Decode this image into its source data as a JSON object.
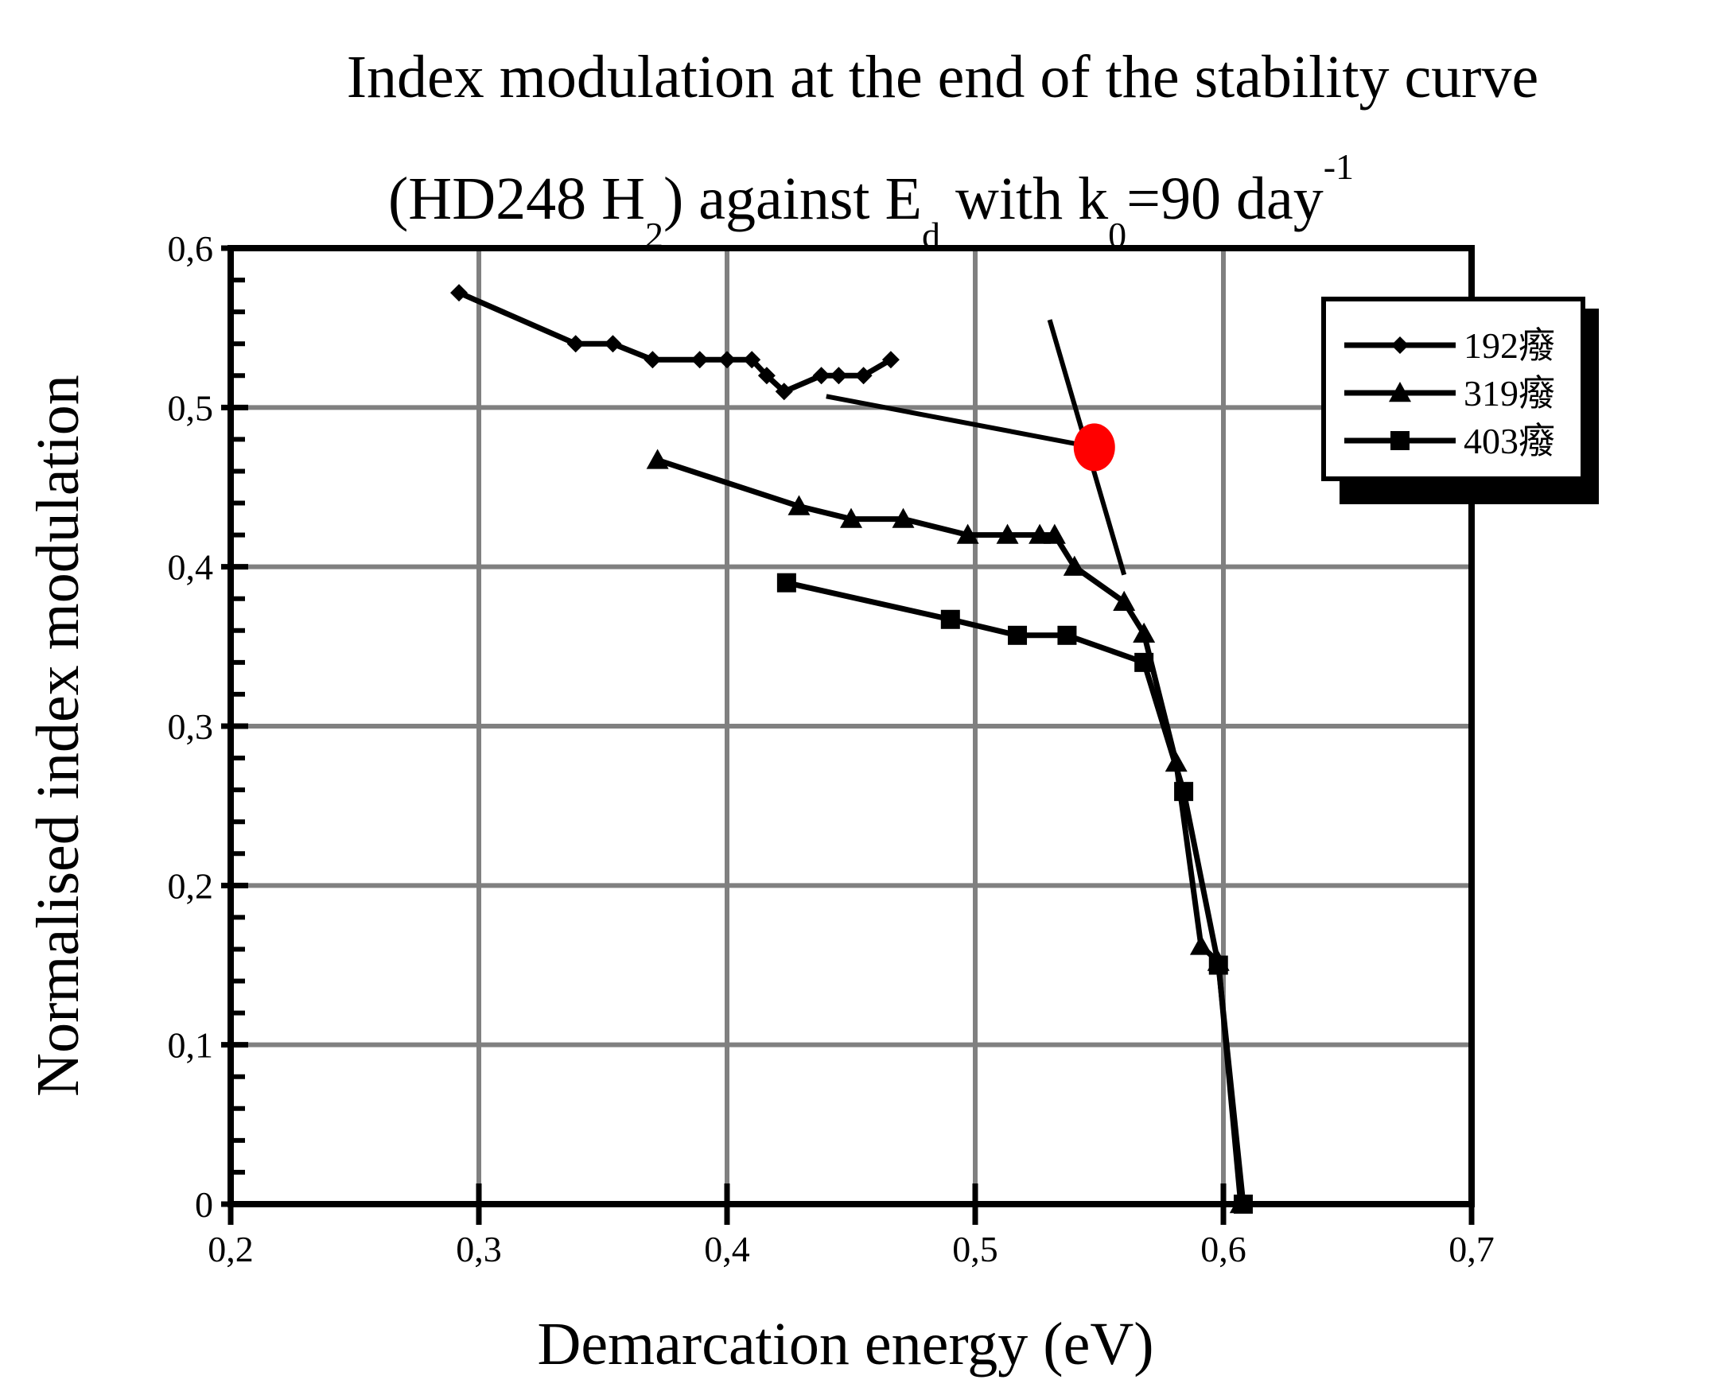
{
  "chart_data": {
    "type": "line",
    "title_line1": "Index modulation at the end of the stability curve",
    "title_line2": {
      "part1": "(HD248 H",
      "sub1": "2",
      "part2": ") against E",
      "sub2": "d",
      "part3": " with k",
      "sub3": "0",
      "part4": "=90 day",
      "sup": "-1"
    },
    "xlabel": "Demarcation energy (eV)",
    "ylabel": "Normalised index modulation",
    "xlim": [
      0.2,
      0.7
    ],
    "ylim": [
      0,
      0.6
    ],
    "x_ticks": [
      0.2,
      0.3,
      0.4,
      0.5,
      0.6,
      0.7
    ],
    "x_tick_labels": [
      "0,2",
      "0,3",
      "0,4",
      "0,5",
      "0,6",
      "0,7"
    ],
    "y_ticks": [
      0,
      0.1,
      0.2,
      0.3,
      0.4,
      0.5,
      0.6
    ],
    "y_tick_labels": [
      "0",
      "0,1",
      "0,2",
      "0,3",
      "0,4",
      "0,5",
      "0,6"
    ],
    "grid": true,
    "legend_position": "top-right",
    "series": [
      {
        "name": "192癈",
        "marker": "diamond",
        "x": [
          0.292,
          0.339,
          0.354,
          0.37,
          0.389,
          0.4,
          0.41,
          0.416,
          0.423,
          0.438,
          0.445,
          0.455,
          0.466
        ],
        "y": [
          0.572,
          0.54,
          0.54,
          0.53,
          0.53,
          0.53,
          0.53,
          0.52,
          0.51,
          0.52,
          0.52,
          0.52,
          0.53
        ]
      },
      {
        "name": "319癈",
        "marker": "triangle",
        "x": [
          0.372,
          0.429,
          0.45,
          0.471,
          0.497,
          0.513,
          0.526,
          0.532,
          0.54,
          0.56,
          0.568,
          0.581,
          0.591,
          0.598,
          0.607
        ],
        "y": [
          0.467,
          0.438,
          0.43,
          0.43,
          0.42,
          0.42,
          0.42,
          0.42,
          0.4,
          0.378,
          0.358,
          0.277,
          0.162,
          0.152,
          0.0
        ]
      },
      {
        "name": "403癈",
        "marker": "square",
        "x": [
          0.424,
          0.49,
          0.517,
          0.537,
          0.568,
          0.584,
          0.598,
          0.608
        ],
        "y": [
          0.39,
          0.367,
          0.357,
          0.357,
          0.34,
          0.259,
          0.15,
          0.0
        ]
      }
    ],
    "annotations": [
      {
        "type": "line",
        "name": "fit-line-shallow",
        "x": [
          0.44,
          0.548
        ],
        "y": [
          0.507,
          0.475
        ]
      },
      {
        "type": "line",
        "name": "fit-line-steep",
        "x": [
          0.53,
          0.56
        ],
        "y": [
          0.555,
          0.395
        ]
      },
      {
        "type": "point",
        "name": "intersection-marker",
        "x": 0.548,
        "y": 0.475,
        "color": "#ff0000"
      }
    ]
  }
}
